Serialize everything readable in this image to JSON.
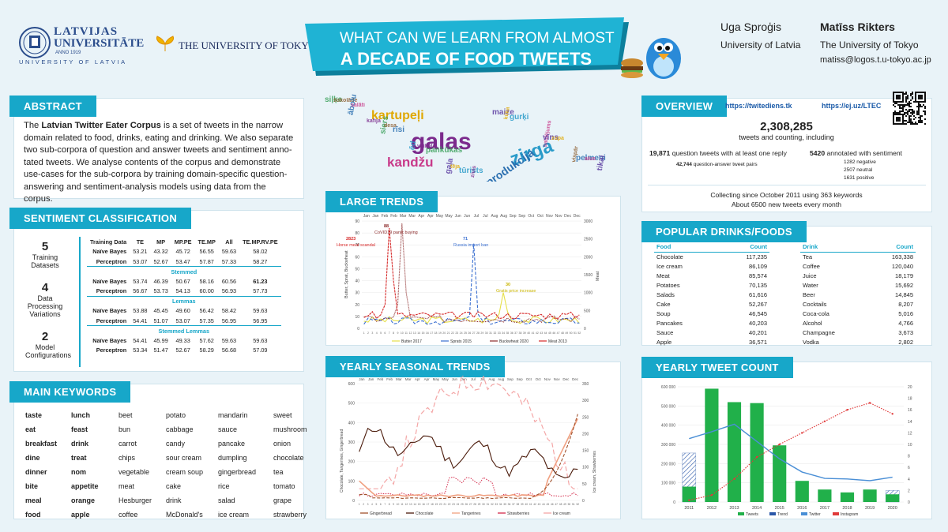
{
  "header": {
    "lu_name_line1": "LATVIJAS",
    "lu_name_line2": "UNIVERSITĀTE",
    "lu_year": "ANNO 1919",
    "lu_subtitle": "UNIVERSITY OF LATVIA",
    "tokyo_name": "THE UNIVERSITY OF TOKYO",
    "title_line1": "WHAT CAN WE LEARN FROM ALMOST",
    "title_line2": "A DECADE OF FOOD TWEETS",
    "author1_name": "Uga Sproģis",
    "author1_affil": "University of Latvia",
    "author2_name": "Matīss Rikters",
    "author2_affil": "The University of Tokyo",
    "author2_email": "matiss@logos.t.u-tokyo.ac.jp"
  },
  "abstract": {
    "title": "ABSTRACT",
    "text_bold": "Latvian Twitter Eater Corpus",
    "text_pre": "The ",
    "text_post": " is a set of tweets in the narrow domain related to food, drinks, eating and drinking. We also separate two sub-corpora of question and answer tweets and sentiment anno-tated tweets. We analyse contents of the corpus and demonstrate use-cases for the sub-corpora by training domain-specific question-answering and sentiment-analysis models using data from the corpus."
  },
  "sentiment": {
    "title": "SENTIMENT CLASSIFICATION",
    "stats": [
      {
        "num": "5",
        "label": "Training Datasets"
      },
      {
        "num": "4",
        "label": "Data Processing Variations"
      },
      {
        "num": "2",
        "label": "Model Configurations"
      }
    ],
    "headers": [
      "Training Data",
      "TE",
      "MP",
      "MP.PE",
      "TE.MP",
      "All",
      "TE.MP.RV.PE"
    ],
    "groups": [
      {
        "section": "",
        "rows": [
          {
            "model": "Naïve Bayes",
            "values": [
              "53.21",
              "43.32",
              "45.72",
              "56.55",
              "59.63",
              "58.02"
            ]
          },
          {
            "model": "Perceptron",
            "values": [
              "53.07",
              "52.67",
              "53.47",
              "57.87",
              "57.33",
              "58.27"
            ]
          }
        ]
      },
      {
        "section": "Stemmed",
        "rows": [
          {
            "model": "Naïve Bayes",
            "values": [
              "53.74",
              "46.39",
              "50.67",
              "58.16",
              "60.56",
              "61.23"
            ]
          },
          {
            "model": "Perceptron",
            "values": [
              "56.67",
              "53.73",
              "54.13",
              "60.00",
              "56.93",
              "57.73"
            ]
          }
        ]
      },
      {
        "section": "Lemmas",
        "rows": [
          {
            "model": "Naïve Bayes",
            "values": [
              "53.88",
              "45.45",
              "49.60",
              "56.42",
              "58.42",
              "59.63"
            ]
          },
          {
            "model": "Perceptron",
            "values": [
              "54.41",
              "51.07",
              "53.07",
              "57.35",
              "56.95",
              "56.95"
            ]
          }
        ]
      },
      {
        "section": "Stemmed Lemmas",
        "rows": [
          {
            "model": "Naïve Bayes",
            "values": [
              "54.41",
              "45.99",
              "49.33",
              "57.62",
              "59.63",
              "59.63"
            ]
          },
          {
            "model": "Perceptron",
            "values": [
              "53.34",
              "51.47",
              "52.67",
              "58.29",
              "56.68",
              "57.09"
            ]
          }
        ]
      }
    ]
  },
  "keywords": {
    "title": "MAIN KEYWORDS",
    "rows": [
      [
        "taste",
        "lunch",
        "beet",
        "potato",
        "mandarin",
        "sweet"
      ],
      [
        "eat",
        "feast",
        "bun",
        "cabbage",
        "sauce",
        "mushroom"
      ],
      [
        "breakfast",
        "drink",
        "carrot",
        "candy",
        "pancake",
        "onion"
      ],
      [
        "dine",
        "treat",
        "chips",
        "sour cream",
        "dumpling",
        "chocolate"
      ],
      [
        "dinner",
        "nom",
        "vegetable",
        "cream soup",
        "gingerbread",
        "tea"
      ],
      [
        "bite",
        "appetite",
        "meat",
        "cake",
        "rice",
        "tomato"
      ],
      [
        "meal",
        "orange",
        "Hesburger",
        "drink",
        "salad",
        "grape"
      ],
      [
        "food",
        "apple",
        "coffee",
        "McDonald's",
        "ice cream",
        "strawberry"
      ]
    ]
  },
  "wordcloud": {
    "words": [
      "galas",
      "zirga",
      "kartupeļi",
      "gaļa",
      "kandžu",
      "produkcija",
      "vispār",
      "siļķe",
      "kafija",
      "ēd",
      "tēja",
      "maize",
      "saldējums",
      "pelmeni",
      "šokolāde",
      "siers",
      "veikala",
      "tūrists",
      "kūka",
      "vīns",
      "alus",
      "ābolu",
      "desa",
      "pankūkas",
      "zivis",
      "gurķi",
      "zupa",
      "tikai",
      "salāti",
      "rīsi"
    ]
  },
  "large_trends": {
    "title": "LARGE TRENDS",
    "chart_data": {
      "type": "line",
      "months": [
        "Jan",
        "Feb",
        "Mar",
        "Apr",
        "May",
        "Jun",
        "Jul",
        "Aug",
        "Sep",
        "Oct",
        "Nov",
        "Dec"
      ],
      "ylabel_left": "Butter, Sprat, Buckwheat",
      "ylabel_right": "Meat",
      "ylim_left": [
        0,
        90
      ],
      "ylim_right": [
        0,
        3000
      ],
      "annotations": [
        {
          "label": "2823",
          "text": "Horse meat scandal"
        },
        {
          "label": "88",
          "text": "CoVID19 panic buying"
        },
        {
          "label": "71",
          "text": "Russia import ban"
        },
        {
          "label": "30",
          "text": "Gratis price increase"
        }
      ],
      "series": [
        {
          "name": "Butter 2017",
          "color": "#e6e04a"
        },
        {
          "name": "Sprats 2015",
          "color": "#3a6fd0"
        },
        {
          "name": "Buckwheat 2020",
          "color": "#8b2a2a"
        },
        {
          "name": "Meat 2013",
          "color": "#d62828"
        }
      ]
    }
  },
  "seasonal": {
    "title": "YEARLY SEASONAL TRENDS",
    "chart_data": {
      "type": "line",
      "ylabel_left": "Chocolate, Tangerines, Gingerbread",
      "ylabel_right": "Ice cream, Strawberries",
      "ylim_left": [
        0,
        600
      ],
      "ylim_right": [
        0,
        350
      ],
      "series": [
        {
          "name": "Gingerbread",
          "color": "#a0522d"
        },
        {
          "name": "Chocolate",
          "color": "#4a1a0a"
        },
        {
          "name": "Tangerines",
          "color": "#f0a080"
        },
        {
          "name": "Strawberries",
          "color": "#d42a4a"
        },
        {
          "name": "Ice cream",
          "color": "#f4a6a6"
        }
      ]
    }
  },
  "overview": {
    "title": "OVERVIEW",
    "link1": "https://twitediens.tk",
    "link2": "https://ej.uz/LTEC",
    "total": "2,308,285",
    "total_label": "tweets and counting, including",
    "q_num": "19,871",
    "q_label": "question tweets with at least one reply",
    "qa_num": "42,744",
    "qa_label": "question-answer tweet pairs",
    "ann_num": "5420",
    "ann_label": "annotated with sentiment",
    "neg": "1282 negative",
    "neu": "2507 neutral",
    "pos": "1631 positive",
    "collect1": "Collecting since October 2011 using 363 keywords",
    "collect2": "About 6500 new tweets every month"
  },
  "popular": {
    "title": "POPULAR DRINKS/FOODS",
    "food_headers": [
      "Food",
      "Count"
    ],
    "drink_headers": [
      "Drink",
      "Count"
    ],
    "foods": [
      [
        "Chocolate",
        "117,235"
      ],
      [
        "Ice cream",
        "86,109"
      ],
      [
        "Meat",
        "85,574"
      ],
      [
        "Potatoes",
        "70,135"
      ],
      [
        "Salads",
        "61,616"
      ],
      [
        "Cake",
        "52,267"
      ],
      [
        "Soup",
        "46,545"
      ],
      [
        "Pancakes",
        "40,203"
      ],
      [
        "Sauce",
        "40,201"
      ],
      [
        "Apple",
        "36,571"
      ]
    ],
    "drinks": [
      [
        "Tea",
        "163,338"
      ],
      [
        "Coffee",
        "120,040"
      ],
      [
        "Juice",
        "18,179"
      ],
      [
        "Water",
        "15,692"
      ],
      [
        "Beer",
        "14,845"
      ],
      [
        "Cocktails",
        "8,207"
      ],
      [
        "Coca-cola",
        "5,016"
      ],
      [
        "Alcohol",
        "4,766"
      ],
      [
        "Champagne",
        "3,673"
      ],
      [
        "Vodka",
        "2,802"
      ]
    ]
  },
  "yearly": {
    "title": "YEARLY TWEET COUNT",
    "chart_data": {
      "type": "bar",
      "categories": [
        "2011",
        "2012",
        "2013",
        "2014",
        "2015",
        "2016",
        "2017",
        "2018",
        "2019",
        "2020"
      ],
      "tweets": [
        80000,
        590000,
        520000,
        515000,
        295000,
        110000,
        65000,
        50000,
        65000,
        40000
      ],
      "trend": [
        255000,
        0,
        0,
        0,
        0,
        0,
        0,
        0,
        0,
        60000
      ],
      "twitter_right": [
        11,
        12.2,
        13.5,
        10.5,
        7.5,
        5.2,
        4.1,
        4.0,
        3.7,
        4.3
      ],
      "instagram_right": [
        0.3,
        1.2,
        4,
        7.8,
        10,
        12,
        14,
        16,
        17.2,
        15.3
      ],
      "ylim_left": [
        0,
        600000
      ],
      "ylim_right": [
        0,
        20
      ],
      "yticks_left": [
        "0",
        "100 000",
        "200 000",
        "300 000",
        "400 000",
        "500 000",
        "600 000"
      ],
      "yticks_right": [
        "0",
        "2",
        "4",
        "6",
        "8",
        "10",
        "12",
        "14",
        "16",
        "18",
        "20"
      ],
      "legend": [
        "Tweets",
        "Trend",
        "Twitter",
        "Instagram"
      ],
      "colors": {
        "tweets": "#21b04a",
        "trend": "#2a57a8",
        "twitter": "#4a8fd6",
        "instagram": "#e03a3a"
      }
    }
  }
}
